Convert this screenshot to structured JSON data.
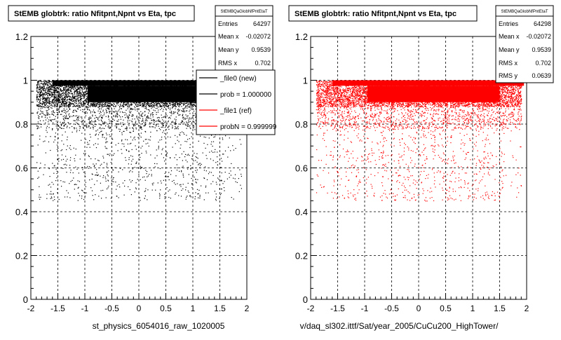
{
  "chart_data": [
    {
      "type": "scatter",
      "title": "StEMB globtrk: ratio Nfitpnt,Npnt vs Eta, tpc",
      "xlabel": "st_physics_6054016_raw_1020005",
      "ylabel": "",
      "xlim": [
        -2,
        2
      ],
      "ylim": [
        0,
        1.2
      ],
      "x_ticks": [
        "-2",
        "-1.5",
        "-1",
        "-0.5",
        "0",
        "0.5",
        "1",
        "1.5",
        "2"
      ],
      "y_ticks": [
        "0",
        "0.2",
        "0.4",
        "0.6",
        "0.8",
        "1",
        "1.2"
      ],
      "grid": true,
      "marker_color": "#000000",
      "stats": {
        "name": "StEMBQaGlobNfPntEtaT",
        "rows": [
          {
            "label": "Entries",
            "value": "64297"
          },
          {
            "label": "Mean x",
            "value": "-0.02072"
          },
          {
            "label": "Mean y",
            "value": "0.9539"
          },
          {
            "label": "RMS x",
            "value": "0.702"
          }
        ]
      },
      "legend": {
        "placement": "top-right",
        "entries": [
          {
            "label": "_file0 (new)",
            "color": "#000000"
          },
          {
            "label": "prob = 1.000000",
            "color": "#000000"
          },
          {
            "label": "_file1 (ref)",
            "color": "#ff0000"
          },
          {
            "label": "probN = 0.999999",
            "color": "#ff0000"
          }
        ]
      }
    },
    {
      "type": "scatter",
      "title": "StEMB globtrk: ratio Nfitpnt,Npnt vs Eta, tpc",
      "xlabel": "v/daq_sl302.ittf/Sat/year_2005/CuCu200_HighTower/",
      "ylabel": "",
      "xlim": [
        -2,
        2
      ],
      "ylim": [
        0,
        1.2
      ],
      "x_ticks": [
        "-2",
        "-1.5",
        "-1",
        "-0.5",
        "0",
        "0.5",
        "1",
        "1.5",
        "2"
      ],
      "y_ticks": [
        "0",
        "0.2",
        "0.4",
        "0.6",
        "0.8",
        "1",
        "1.2"
      ],
      "grid": true,
      "marker_color": "#ff0000",
      "stats": {
        "name": "StEMBQaGlobNfPntEtaT",
        "rows": [
          {
            "label": "Entries",
            "value": "64298"
          },
          {
            "label": "Mean x",
            "value": "-0.02072"
          },
          {
            "label": "Mean y",
            "value": "0.9539"
          },
          {
            "label": "RMS x",
            "value": "0.702"
          },
          {
            "label": "RMS y",
            "value": "0.0639"
          }
        ]
      }
    }
  ]
}
